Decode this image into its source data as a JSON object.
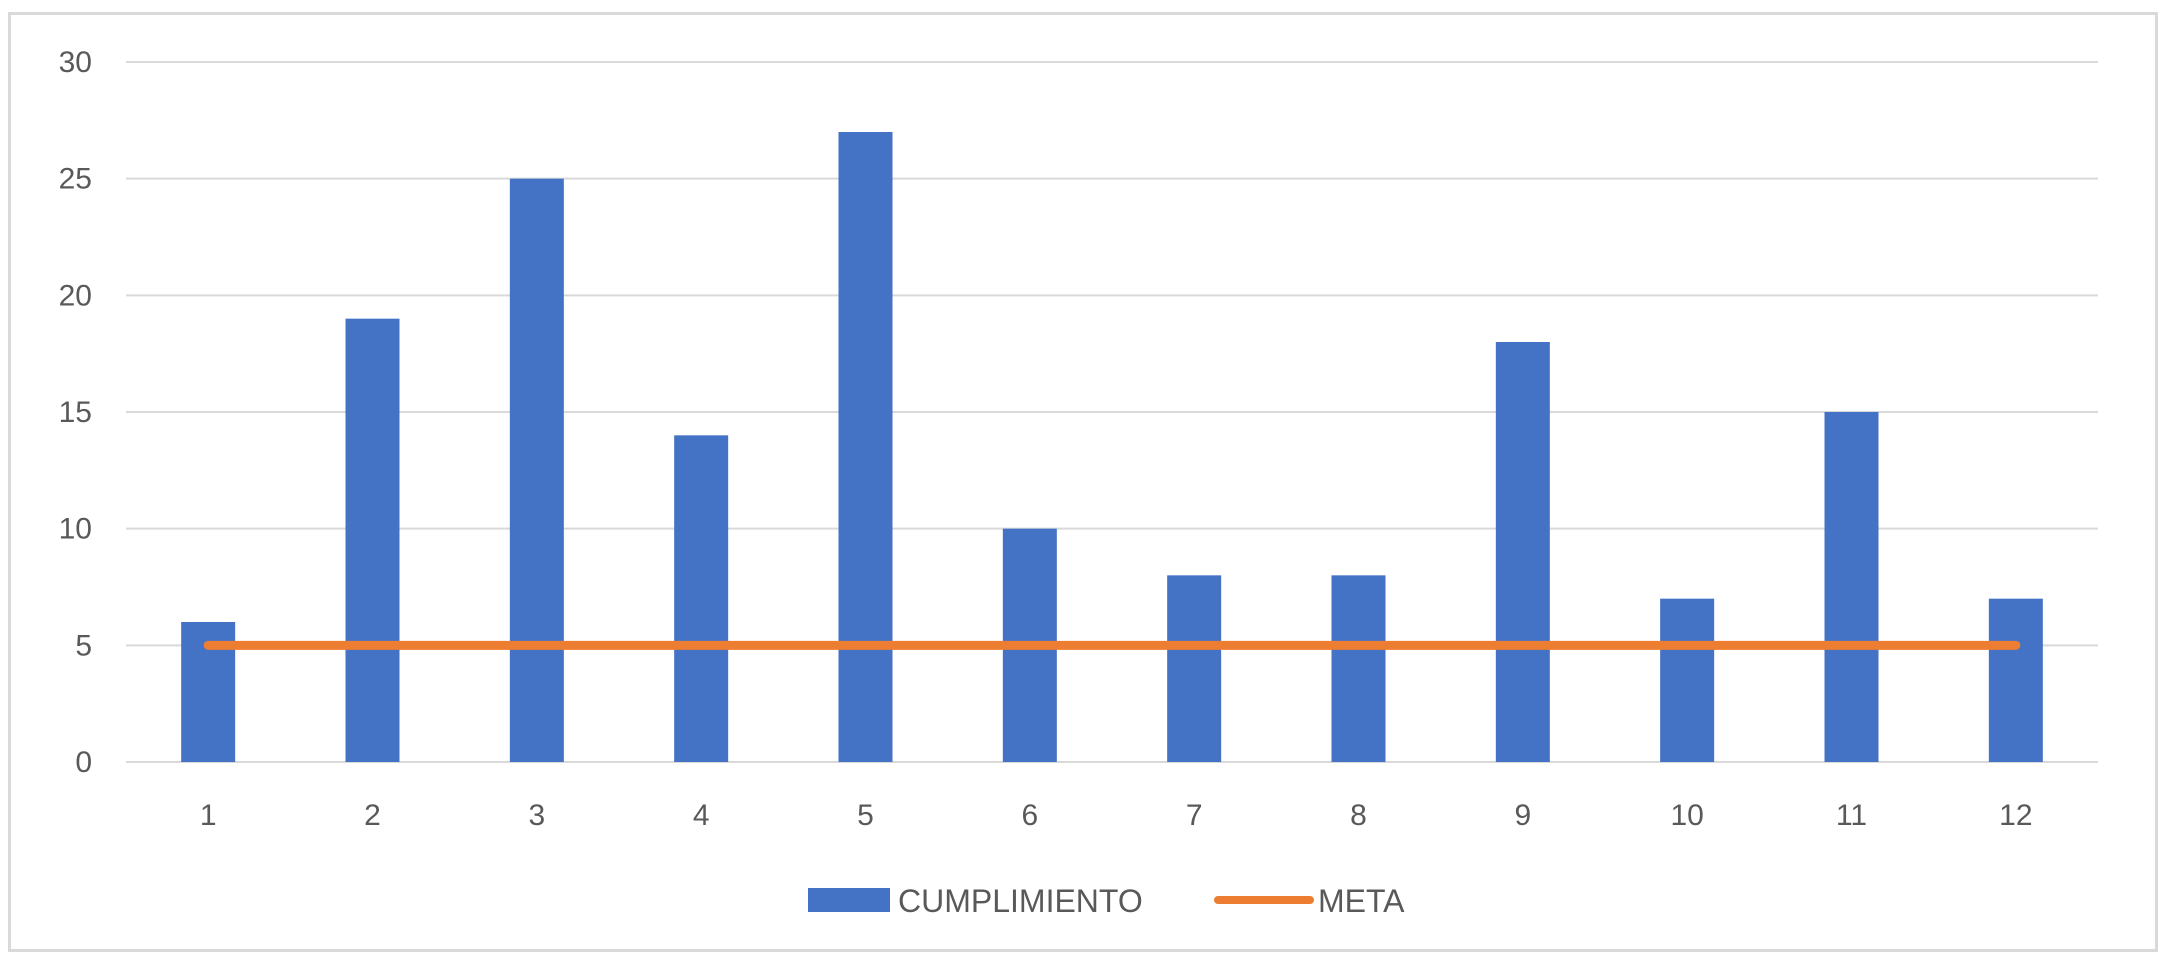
{
  "chart_data": {
    "type": "bar",
    "title": "",
    "xlabel": "",
    "ylabel": "",
    "categories": [
      "1",
      "2",
      "3",
      "4",
      "5",
      "6",
      "7",
      "8",
      "9",
      "10",
      "11",
      "12"
    ],
    "ylim": [
      0,
      30
    ],
    "yticks": [
      0,
      5,
      10,
      15,
      20,
      25,
      30
    ],
    "grid": true,
    "legend_position": "bottom",
    "series": [
      {
        "name": "CUMPLIMIENTO",
        "type": "bar",
        "color": "#4472c4",
        "values": [
          6,
          19,
          25,
          14,
          27,
          10,
          8,
          8,
          18,
          7,
          15,
          7
        ]
      },
      {
        "name": "META",
        "type": "line",
        "color": "#ed7d31",
        "values": [
          5,
          5,
          5,
          5,
          5,
          5,
          5,
          5,
          5,
          5,
          5,
          5
        ]
      }
    ]
  }
}
